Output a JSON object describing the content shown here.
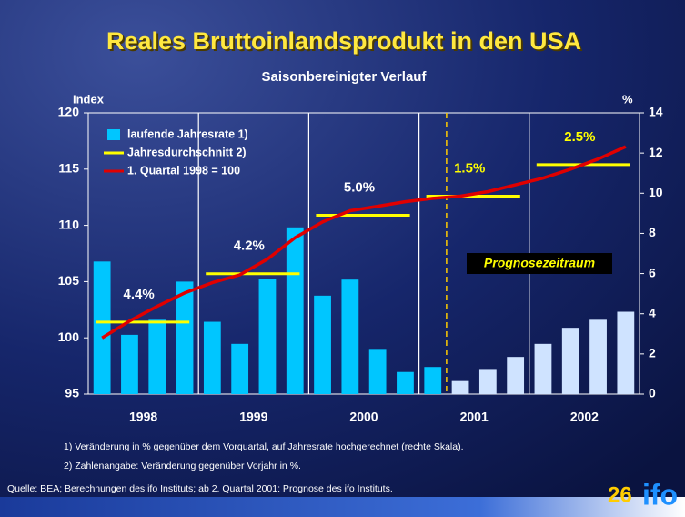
{
  "chart_data": {
    "type": "bar-line",
    "title": "Reales Bruttoinlandsprodukt in den USA",
    "subtitle": "Saisonbereinigter Verlauf",
    "y_label": "Index",
    "y2_label": "%",
    "categories": [
      "1998",
      "1999",
      "2000",
      "2001",
      "2002"
    ],
    "ylim": [
      95,
      120
    ],
    "yticks": [
      95,
      100,
      105,
      110,
      115,
      120
    ],
    "y2lim": [
      0,
      14
    ],
    "y2ticks": [
      0,
      2,
      4,
      6,
      8,
      10,
      12,
      14
    ],
    "series": [
      {
        "name": "laufende Jahresrate 1)",
        "kind": "bar",
        "axis": "y2",
        "color": "#00c6ff",
        "values": [
          [
            6.6,
            2.95,
            3.7,
            5.6
          ],
          [
            3.6,
            2.5,
            5.75,
            8.3
          ],
          [
            4.9,
            5.7,
            2.25,
            1.1
          ],
          [
            1.35,
            0.65,
            1.25,
            1.85
          ],
          [
            2.5,
            3.3,
            3.7,
            4.1
          ]
        ],
        "colors": [
          [
            "#00c6ff",
            "#00c6ff",
            "#00c6ff",
            "#00c6ff"
          ],
          [
            "#00c6ff",
            "#00c6ff",
            "#00c6ff",
            "#00c6ff"
          ],
          [
            "#00c6ff",
            "#00c6ff",
            "#00c6ff",
            "#00c6ff"
          ],
          [
            "#00c6ff",
            "#cfe3ff",
            "#cfe3ff",
            "#cfe3ff"
          ],
          [
            "#cfe3ff",
            "#cfe3ff",
            "#cfe3ff",
            "#cfe3ff"
          ]
        ]
      },
      {
        "name": "Jahresdurchschnitt 2)",
        "kind": "step",
        "axis": "y",
        "color": "#ffff00",
        "values": [
          101.4,
          105.7,
          110.9,
          112.6,
          115.4
        ]
      },
      {
        "name": "1. Quartal 1998 = 100",
        "kind": "line",
        "axis": "y",
        "color": "#e00000",
        "values": [
          [
            100.0,
            101.5,
            102.8,
            104.0
          ],
          [
            104.9,
            105.6,
            107.0,
            108.9
          ],
          [
            110.3,
            111.3,
            111.7,
            112.1
          ],
          [
            112.4,
            112.6,
            113.0,
            113.6
          ],
          [
            114.2,
            115.0,
            115.9,
            117.0
          ]
        ]
      }
    ],
    "annotations": [
      "4.4%",
      "4.2%",
      "5.0%",
      "1.5%",
      "2.5%"
    ],
    "annotation_colors": [
      "#ffffff",
      "#ffffff",
      "#ffffff",
      "#ffff00",
      "#ffff00"
    ],
    "forecast_label": "Prognosezeitraum",
    "footnotes": [
      "1) Veränderung in % gegenüber dem Vorquartal, auf Jahresrate hochgerechnet (rechte Skala).",
      "2) Zahlenangabe: Veränderung gegenüber Vorjahr in %."
    ],
    "source": "Quelle: BEA; Berechnungen des ifo Instituts; ab 2. Quartal 2001: Prognose des ifo Instituts.",
    "page_number": "26",
    "logo": "ifo"
  }
}
